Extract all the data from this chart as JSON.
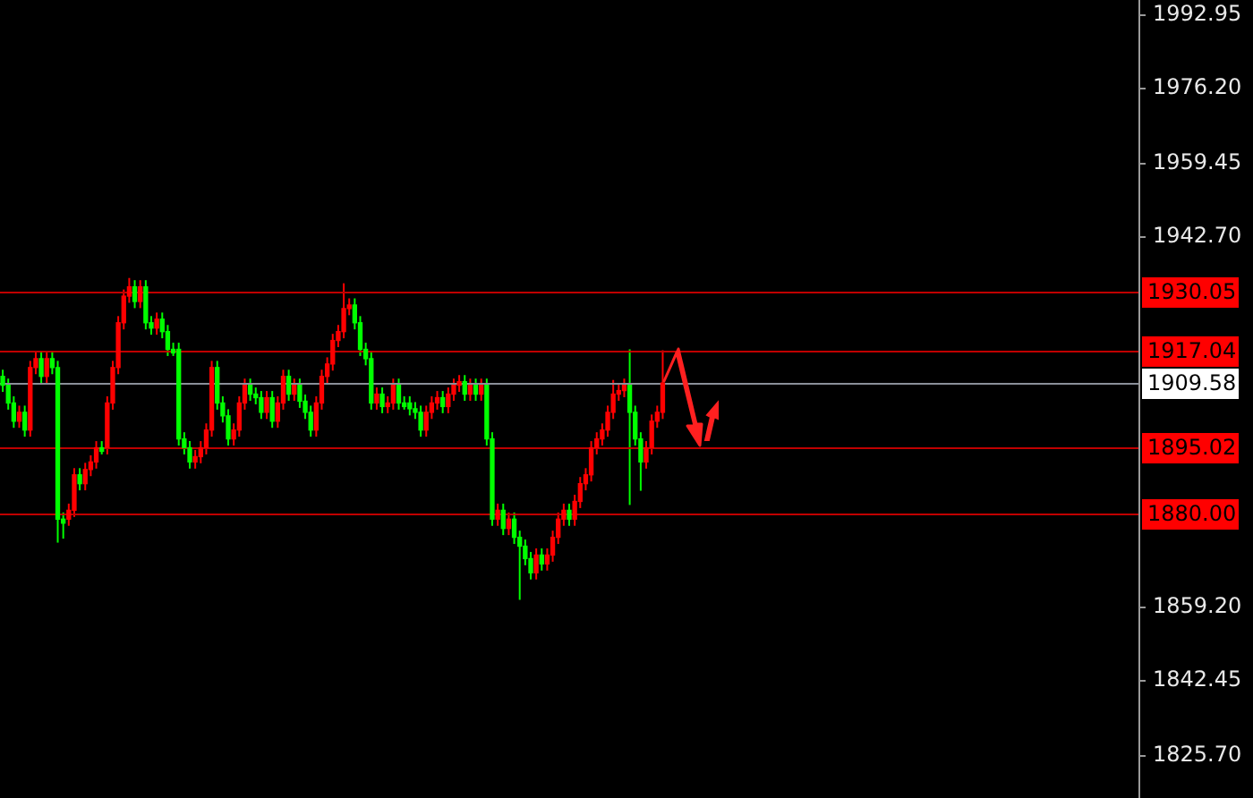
{
  "chart_data": {
    "type": "candlestick",
    "categories": [
      null,
      null,
      null,
      null,
      null,
      null,
      null,
      null,
      null,
      null,
      null,
      null,
      null,
      null,
      null,
      null,
      null,
      null,
      null,
      null,
      null,
      null,
      null,
      null,
      null,
      null,
      null,
      null,
      null,
      null,
      null,
      null,
      null,
      null,
      null,
      null,
      null,
      null,
      null,
      null,
      null,
      null,
      null,
      null,
      null,
      null,
      null,
      null,
      null,
      null,
      null,
      null,
      null,
      null,
      null,
      null,
      null,
      null,
      null,
      null,
      null,
      null,
      null,
      null,
      null,
      null,
      null,
      null,
      null,
      null,
      null,
      null,
      null,
      null,
      null,
      null,
      null,
      null,
      null,
      null,
      null,
      null,
      null,
      null,
      null,
      null,
      null,
      null,
      null,
      null,
      null,
      null,
      null,
      null,
      null,
      null,
      null,
      null,
      null,
      null,
      null,
      null,
      null,
      null,
      null,
      null,
      null,
      null,
      null,
      null,
      null,
      null,
      null,
      null,
      null,
      null,
      null,
      null,
      null,
      null,
      null,
      null,
      null,
      null,
      null,
      null,
      null,
      null,
      null,
      null,
      null,
      null,
      null,
      null,
      null,
      null,
      null,
      null,
      null,
      null,
      null,
      null,
      null,
      null,
      null,
      null,
      null,
      null,
      null,
      null,
      null,
      null,
      null,
      null,
      null,
      null,
      null,
      null,
      null,
      null,
      null,
      null,
      null,
      null,
      null,
      null,
      null,
      null,
      null,
      null,
      null,
      null,
      null,
      null,
      null,
      null,
      null,
      null,
      null,
      null,
      null,
      null,
      null,
      null,
      null,
      null,
      null,
      null,
      null,
      null,
      null,
      null,
      null,
      null,
      null,
      null,
      null,
      null,
      null,
      null,
      null,
      null,
      null,
      null,
      null,
      null,
      null
    ],
    "ohlc": [
      [
        1911.1,
        1912.6,
        1907.6,
        1909.1
      ],
      [
        1909.1,
        1910.6,
        1903.6,
        1905.1
      ],
      [
        1905.1,
        1906.6,
        1899.5,
        1901.0
      ],
      [
        1901.0,
        1904.5,
        1899.5,
        1903.0
      ],
      [
        1903.0,
        1904.5,
        1897.5,
        1899.0
      ],
      [
        1899.0,
        1914.6,
        1897.5,
        1913.1
      ],
      [
        1913.1,
        1916.6,
        1911.6,
        1915.1
      ],
      [
        1915.1,
        1916.6,
        1909.6,
        1911.1
      ],
      [
        1911.1,
        1916.6,
        1909.6,
        1915.1
      ],
      [
        1915.1,
        1916.6,
        1911.6,
        1913.1
      ],
      [
        1913.1,
        1914.6,
        1873.6,
        1878.9
      ],
      [
        1878.9,
        1880.4,
        1874.5,
        1878.0
      ],
      [
        1878.9,
        1882.4,
        1877.4,
        1880.9
      ],
      [
        1880.9,
        1890.4,
        1879.4,
        1888.9
      ],
      [
        1888.9,
        1890.4,
        1885.4,
        1886.9
      ],
      [
        1886.9,
        1891.6,
        1885.4,
        1890.1
      ],
      [
        1890.1,
        1893.3,
        1888.6,
        1891.8
      ],
      [
        1891.8,
        1896.5,
        1890.3,
        1895.0
      ],
      [
        1895.0,
        1896.5,
        1893.5,
        1894.2
      ],
      [
        1895.0,
        1906.6,
        1893.5,
        1905.1
      ],
      [
        1905.1,
        1914.6,
        1903.6,
        1913.1
      ],
      [
        1913.1,
        1924.7,
        1911.6,
        1923.2
      ],
      [
        1923.2,
        1930.7,
        1921.7,
        1929.2
      ],
      [
        1929.2,
        1933.3,
        1927.7,
        1931.3
      ],
      [
        1931.3,
        1932.8,
        1926.5,
        1928.0
      ],
      [
        1928.0,
        1932.8,
        1926.5,
        1931.3
      ],
      [
        1931.3,
        1932.8,
        1921.7,
        1923.2
      ],
      [
        1923.2,
        1924.7,
        1920.5,
        1922.0
      ],
      [
        1922.0,
        1925.5,
        1920.5,
        1924.0
      ],
      [
        1924.0,
        1925.5,
        1919.7,
        1921.2
      ],
      [
        1921.2,
        1922.7,
        1915.7,
        1917.2
      ],
      [
        1917.2,
        1918.7,
        1915.7,
        1916.4
      ],
      [
        1917.2,
        1918.7,
        1895.5,
        1897.0
      ],
      [
        1897.0,
        1898.5,
        1893.5,
        1895.0
      ],
      [
        1895.0,
        1896.5,
        1890.3,
        1891.8
      ],
      [
        1891.8,
        1894.5,
        1890.3,
        1893.0
      ],
      [
        1893.0,
        1896.5,
        1891.5,
        1895.0
      ],
      [
        1895.0,
        1900.5,
        1893.5,
        1899.0
      ],
      [
        1899.0,
        1914.6,
        1897.5,
        1913.1
      ],
      [
        1913.1,
        1914.6,
        1903.6,
        1905.1
      ],
      [
        1905.1,
        1906.6,
        1900.7,
        1902.2
      ],
      [
        1902.2,
        1903.7,
        1895.5,
        1897.0
      ],
      [
        1897.0,
        1900.5,
        1895.5,
        1899.0
      ],
      [
        1899.0,
        1906.6,
        1897.5,
        1905.1
      ],
      [
        1905.1,
        1910.6,
        1903.6,
        1909.1
      ],
      [
        1909.1,
        1910.6,
        1905.6,
        1907.1
      ],
      [
        1907.1,
        1908.6,
        1904.8,
        1906.3
      ],
      [
        1906.3,
        1907.8,
        1901.5,
        1903.0
      ],
      [
        1903.0,
        1907.8,
        1901.5,
        1906.3
      ],
      [
        1906.3,
        1907.8,
        1899.5,
        1901.0
      ],
      [
        1901.0,
        1906.6,
        1899.5,
        1905.1
      ],
      [
        1905.1,
        1912.6,
        1903.6,
        1911.1
      ],
      [
        1911.1,
        1912.6,
        1905.6,
        1907.1
      ],
      [
        1907.1,
        1910.6,
        1905.6,
        1909.1
      ],
      [
        1909.1,
        1910.6,
        1904.0,
        1905.5
      ],
      [
        1905.5,
        1907.0,
        1901.5,
        1903.0
      ],
      [
        1903.0,
        1904.5,
        1897.5,
        1899.0
      ],
      [
        1899.0,
        1906.6,
        1897.5,
        1905.1
      ],
      [
        1905.1,
        1912.6,
        1903.6,
        1911.1
      ],
      [
        1911.1,
        1915.4,
        1909.6,
        1913.9
      ],
      [
        1913.9,
        1920.7,
        1912.4,
        1919.2
      ],
      [
        1919.2,
        1922.7,
        1917.7,
        1921.2
      ],
      [
        1921.2,
        1932.1,
        1919.7,
        1926.4
      ],
      [
        1926.4,
        1928.7,
        1924.9,
        1927.2
      ],
      [
        1927.2,
        1928.7,
        1921.7,
        1923.2
      ],
      [
        1923.2,
        1924.7,
        1915.7,
        1917.2
      ],
      [
        1917.2,
        1918.7,
        1913.6,
        1915.1
      ],
      [
        1915.1,
        1916.6,
        1903.6,
        1905.1
      ],
      [
        1905.1,
        1908.6,
        1903.6,
        1907.1
      ],
      [
        1907.1,
        1908.6,
        1902.8,
        1904.3
      ],
      [
        1904.3,
        1906.6,
        1902.8,
        1905.1
      ],
      [
        1905.1,
        1910.6,
        1903.6,
        1909.1
      ],
      [
        1909.1,
        1910.6,
        1903.6,
        1905.1
      ],
      [
        1905.1,
        1906.6,
        1903.6,
        1904.3
      ],
      [
        1905.1,
        1906.6,
        1902.3,
        1903.8
      ],
      [
        1903.8,
        1905.3,
        1901.5,
        1903.0
      ],
      [
        1903.0,
        1904.5,
        1897.5,
        1899.0
      ],
      [
        1899.0,
        1904.5,
        1897.5,
        1903.0
      ],
      [
        1903.0,
        1906.6,
        1901.5,
        1905.1
      ],
      [
        1905.1,
        1907.8,
        1903.6,
        1906.3
      ],
      [
        1906.3,
        1907.8,
        1902.8,
        1904.3
      ],
      [
        1904.3,
        1908.6,
        1902.8,
        1907.1
      ],
      [
        1907.1,
        1910.6,
        1905.6,
        1909.1
      ],
      [
        1909.1,
        1911.4,
        1907.6,
        1909.9
      ],
      [
        1909.9,
        1911.4,
        1905.6,
        1907.1
      ],
      [
        1907.1,
        1910.6,
        1905.6,
        1909.1
      ],
      [
        1909.1,
        1910.6,
        1905.6,
        1907.1
      ],
      [
        1907.1,
        1910.6,
        1905.6,
        1909.1
      ],
      [
        1909.1,
        1910.6,
        1895.5,
        1897.0
      ],
      [
        1897.0,
        1898.5,
        1877.4,
        1878.9
      ],
      [
        1878.9,
        1882.4,
        1877.4,
        1880.9
      ],
      [
        1880.9,
        1882.4,
        1875.3,
        1876.8
      ],
      [
        1876.8,
        1880.4,
        1875.3,
        1878.9
      ],
      [
        1878.9,
        1880.4,
        1873.3,
        1874.8
      ],
      [
        1874.8,
        1876.3,
        1860.7,
        1872.8
      ],
      [
        1872.8,
        1874.3,
        1868.5,
        1870.0
      ],
      [
        1870.0,
        1871.5,
        1865.3,
        1866.8
      ],
      [
        1866.8,
        1872.3,
        1865.3,
        1870.8
      ],
      [
        1870.8,
        1872.3,
        1867.3,
        1868.8
      ],
      [
        1868.8,
        1872.3,
        1867.3,
        1870.8
      ],
      [
        1870.8,
        1876.3,
        1869.3,
        1874.8
      ],
      [
        1874.8,
        1880.4,
        1873.3,
        1878.9
      ],
      [
        1878.9,
        1882.4,
        1877.4,
        1880.9
      ],
      [
        1880.9,
        1882.4,
        1877.4,
        1878.9
      ],
      [
        1878.9,
        1884.4,
        1877.4,
        1882.9
      ],
      [
        1882.9,
        1888.4,
        1881.4,
        1886.9
      ],
      [
        1886.9,
        1890.4,
        1885.4,
        1888.9
      ],
      [
        1888.9,
        1896.5,
        1887.4,
        1895.0
      ],
      [
        1895.0,
        1898.5,
        1893.5,
        1897.0
      ],
      [
        1897.0,
        1900.5,
        1895.5,
        1899.0
      ],
      [
        1899.0,
        1904.5,
        1897.5,
        1903.0
      ],
      [
        1903.0,
        1910.3,
        1901.5,
        1907.1
      ],
      [
        1907.1,
        1909.4,
        1905.6,
        1907.9
      ],
      [
        1907.9,
        1910.6,
        1906.4,
        1909.1
      ],
      [
        1909.1,
        1917.2,
        1882.1,
        1903.0
      ],
      [
        1903.0,
        1904.5,
        1895.5,
        1897.0
      ],
      [
        1897.0,
        1898.5,
        1885.3,
        1891.8
      ],
      [
        1891.8,
        1896.5,
        1890.3,
        1895.0
      ],
      [
        1895.0,
        1902.5,
        1893.5,
        1901.0
      ],
      [
        1901.0,
        1904.5,
        1899.5,
        1903.0
      ],
      [
        1903.0,
        1917.0,
        1901.5,
        1909.6
      ],
      null,
      null,
      null,
      null,
      null,
      null,
      null,
      null,
      null,
      null,
      null,
      null,
      null,
      null,
      null,
      null,
      null,
      null,
      null,
      null,
      null,
      null,
      null,
      null,
      null,
      null,
      null,
      null,
      null,
      null,
      null,
      null,
      null,
      null,
      null,
      null,
      null,
      null,
      null,
      null,
      null,
      null,
      null,
      null,
      null,
      null,
      null,
      null,
      null,
      null,
      null,
      null,
      null,
      null,
      null,
      null,
      null,
      null,
      null,
      null,
      null,
      null,
      null,
      null,
      null,
      null,
      null,
      null,
      null,
      null,
      null,
      null,
      null,
      null,
      null,
      null,
      null,
      null,
      null,
      null,
      null,
      null,
      null,
      null,
      null,
      null
    ],
    "colors": [
      "#00ff00",
      "#00ff00",
      "#00ff00",
      "#ff0000",
      "#00ff00",
      "#ff0000",
      "#ff0000",
      "#00ff00",
      "#ff0000",
      "#00ff00",
      "#00ff00",
      "#00ff00",
      "#ff0000",
      "#ff0000",
      "#00ff00",
      "#ff0000",
      "#ff0000",
      "#ff0000",
      "#00ff00",
      "#ff0000",
      "#ff0000",
      "#ff0000",
      "#ff0000",
      "#ff0000",
      "#00ff00",
      "#ff0000",
      "#00ff00",
      "#00ff00",
      "#ff0000",
      "#00ff00",
      "#00ff00",
      "#00ff00",
      "#00ff00",
      "#00ff00",
      "#00ff00",
      "#ff0000",
      "#ff0000",
      "#ff0000",
      "#ff0000",
      "#00ff00",
      "#00ff00",
      "#00ff00",
      "#ff0000",
      "#ff0000",
      "#ff0000",
      "#00ff00",
      "#00ff00",
      "#00ff00",
      "#ff0000",
      "#00ff00",
      "#ff0000",
      "#ff0000",
      "#00ff00",
      "#ff0000",
      "#00ff00",
      "#00ff00",
      "#00ff00",
      "#ff0000",
      "#ff0000",
      "#ff0000",
      "#ff0000",
      "#ff0000",
      "#ff0000",
      "#ff0000",
      "#00ff00",
      "#00ff00",
      "#00ff00",
      "#00ff00",
      "#ff0000",
      "#00ff00",
      "#ff0000",
      "#ff0000",
      "#00ff00",
      "#00ff00",
      "#00ff00",
      "#00ff00",
      "#00ff00",
      "#ff0000",
      "#ff0000",
      "#ff0000",
      "#00ff00",
      "#ff0000",
      "#ff0000",
      "#ff0000",
      "#00ff00",
      "#ff0000",
      "#00ff00",
      "#ff0000",
      "#00ff00",
      "#00ff00",
      "#ff0000",
      "#00ff00",
      "#ff0000",
      "#00ff00",
      "#00ff00",
      "#00ff00",
      "#00ff00",
      "#ff0000",
      "#00ff00",
      "#ff0000",
      "#ff0000",
      "#ff0000",
      "#ff0000",
      "#00ff00",
      "#ff0000",
      "#ff0000",
      "#ff0000",
      "#ff0000",
      "#ff0000",
      "#ff0000",
      "#ff0000",
      "#ff0000",
      "#ff0000",
      "#ff0000",
      "#00ff00",
      "#00ff00",
      "#00ff00",
      "#ff0000",
      "#ff0000",
      "#ff0000",
      "#ff0000",
      null,
      null,
      null,
      null,
      null,
      null,
      null,
      null,
      null,
      null,
      null,
      null,
      null,
      null,
      null,
      null,
      null,
      null,
      null,
      null,
      null,
      null,
      null,
      null,
      null,
      null,
      null,
      null,
      null,
      null,
      null,
      null,
      null,
      null,
      null,
      null,
      null,
      null,
      null,
      null,
      null,
      null,
      null,
      null,
      null,
      null,
      null,
      null,
      null,
      null,
      null,
      null,
      null,
      null,
      null,
      null,
      null,
      null,
      null,
      null,
      null,
      null,
      null,
      null,
      null,
      null,
      null,
      null,
      null,
      null,
      null,
      null,
      null,
      null,
      null,
      null,
      null,
      null,
      null,
      null,
      null,
      null,
      null,
      null,
      null,
      null
    ],
    "ylim": [
      1816,
      1996
    ],
    "yticks": [
      {
        "value": 1992.95,
        "label": "1992.95"
      },
      {
        "value": 1976.2,
        "label": "1976.20"
      },
      {
        "value": 1959.45,
        "label": "1959.45"
      },
      {
        "value": 1942.7,
        "label": "1942.70"
      },
      {
        "value": 1859.2,
        "label": "1859.20"
      },
      {
        "value": 1842.45,
        "label": "1842.45"
      },
      {
        "value": 1825.7,
        "label": "1825.70"
      }
    ],
    "tick_labels": "y",
    "legend": false,
    "ref_lines": [
      {
        "axis": "y",
        "value": 1930.05,
        "label": "1930.05",
        "color": "#c00000"
      },
      {
        "axis": "y",
        "value": 1917.04,
        "label": "1917.04",
        "color": "#c00000"
      },
      {
        "axis": "y",
        "value": 1909.58,
        "label": "1909.58",
        "color": "#8a8f99"
      },
      {
        "axis": "y",
        "value": 1895.02,
        "label": "1895.02",
        "color": "#c00000"
      },
      {
        "axis": "y",
        "value": 1880.0,
        "label": "1880.00",
        "color": "#c00000"
      }
    ]
  }
}
